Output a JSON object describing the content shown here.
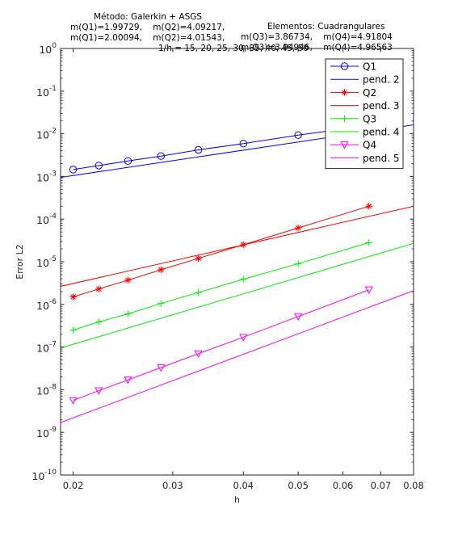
{
  "title_lines": [
    {
      "left": "Método: Galerkin + ASGS",
      "right": "Elementos: Cuadrangulares"
    },
    {
      "left": "m(Q1)=1.99729,    m(Q2)=4.09217,",
      "right": "m(Q3)=3.86734,    m(Q4)=4.91804"
    },
    {
      "left": "m(Q1)=2.00094,    m(Q2)=4.01543,",
      "right": "m(Q3)=3.94946,    m(Q4)=4.96563"
    },
    {
      "left": "1/h = 15, 20, 25, 30, 35, 40, 45, 50",
      "right": ""
    }
  ],
  "chart_data": {
    "type": "line",
    "xlabel": "h",
    "ylabel": "Error L2",
    "xscale": "log",
    "yscale": "log",
    "xlim": [
      0.019,
      0.08
    ],
    "ylim": [
      1e-10,
      1
    ],
    "grid": false,
    "legend_position": "top-right",
    "x_ticks": [
      {
        "value": 0.02,
        "label": "0.02"
      },
      {
        "value": 0.03,
        "label": "0.03"
      },
      {
        "value": 0.04,
        "label": "0.04"
      },
      {
        "value": 0.05,
        "label": "0.05"
      },
      {
        "value": 0.06,
        "label": "0.06"
      },
      {
        "value": 0.07,
        "label": "0.07"
      },
      {
        "value": 0.08,
        "label": "0.08"
      }
    ],
    "y_ticks": [
      {
        "value": 1e-10,
        "base": "10",
        "exp": "-10"
      },
      {
        "value": 1e-09,
        "base": "10",
        "exp": "-9"
      },
      {
        "value": 1e-08,
        "base": "10",
        "exp": "-8"
      },
      {
        "value": 1e-07,
        "base": "10",
        "exp": "-7"
      },
      {
        "value": 1e-06,
        "base": "10",
        "exp": "-6"
      },
      {
        "value": 1e-05,
        "base": "10",
        "exp": "-5"
      },
      {
        "value": 0.0001,
        "base": "10",
        "exp": "-4"
      },
      {
        "value": 0.001,
        "base": "10",
        "exp": "-3"
      },
      {
        "value": 0.01,
        "base": "10",
        "exp": "-2"
      },
      {
        "value": 0.1,
        "base": "10",
        "exp": "-1"
      },
      {
        "value": 1,
        "base": "10",
        "exp": "0"
      }
    ],
    "series": [
      {
        "name": "Q1",
        "kind": "markers",
        "marker": "circle",
        "color": "#0000ff",
        "x": [
          0.02,
          0.0222,
          0.025,
          0.0286,
          0.0333,
          0.04,
          0.05,
          0.0667
        ],
        "y": [
          0.00145,
          0.0018,
          0.0023,
          0.003,
          0.0042,
          0.0059,
          0.0093,
          0.0155
        ]
      },
      {
        "name": "pend. 2",
        "kind": "line",
        "color": "#0000ff",
        "x": [
          0.019,
          0.08
        ],
        "y": [
          0.00095,
          0.0162
        ]
      },
      {
        "name": "Q2",
        "kind": "markers",
        "marker": "star",
        "color": "#ff0000",
        "x": [
          0.02,
          0.0222,
          0.025,
          0.0286,
          0.0333,
          0.04,
          0.05,
          0.0667
        ],
        "y": [
          1.5e-06,
          2.3e-06,
          3.7e-06,
          6.5e-06,
          1.2e-05,
          2.5e-05,
          6.2e-05,
          0.0002
        ]
      },
      {
        "name": "pend. 3",
        "kind": "line",
        "color": "#ff0000",
        "x": [
          0.019,
          0.08
        ],
        "y": [
          2.65e-06,
          0.0002
        ]
      },
      {
        "name": "Q3",
        "kind": "markers",
        "marker": "plus",
        "color": "#00ee00",
        "x": [
          0.02,
          0.0222,
          0.025,
          0.0286,
          0.0333,
          0.04,
          0.05,
          0.0667
        ],
        "y": [
          2.5e-07,
          3.9e-07,
          6e-07,
          1.05e-06,
          1.9e-06,
          3.9e-06,
          9e-06,
          2.8e-05
        ]
      },
      {
        "name": "pend. 4",
        "kind": "line",
        "color": "#00ee00",
        "x": [
          0.019,
          0.08
        ],
        "y": [
          9.5e-08,
          2.7e-05
        ]
      },
      {
        "name": "Q4",
        "kind": "markers",
        "marker": "triangle-down",
        "color": "#ff00ff",
        "x": [
          0.02,
          0.0222,
          0.025,
          0.0286,
          0.0333,
          0.04,
          0.05,
          0.0667
        ],
        "y": [
          5.6e-09,
          9.5e-09,
          1.7e-08,
          3.3e-08,
          7e-08,
          1.7e-07,
          5.2e-07,
          2.2e-06
        ]
      },
      {
        "name": "pend. 5",
        "kind": "line",
        "color": "#ff00ff",
        "x": [
          0.019,
          0.08
        ],
        "y": [
          1.7e-09,
          2.1e-06
        ]
      }
    ]
  }
}
